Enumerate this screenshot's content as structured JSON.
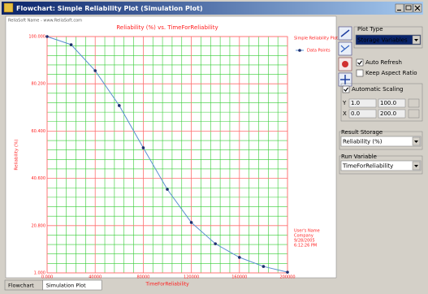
{
  "window": {
    "title": "Flowchart: Simple Reliability Plot (Simulation Plot)",
    "watermark": "ReliaSoft Name - www.ReliaSoft.com"
  },
  "chart_data": {
    "type": "line",
    "title": "Reliability (%) vs. TimeForReliability",
    "x_label": "TimeForReliability",
    "y_label": "Reliability (%)",
    "legend_title": "Simple Reliability Plot",
    "x": [
      0,
      20000,
      40000,
      60000,
      80000,
      100000,
      120000,
      140000,
      160000,
      180000,
      200000
    ],
    "series": [
      {
        "name": "Data Points",
        "color": "#5b8fd0",
        "marker_color": "#1f2f6f",
        "values": [
          100,
          96.6,
          85.7,
          71.1,
          53.4,
          36.0,
          22.1,
          13.2,
          7.5,
          3.7,
          1.3
        ]
      }
    ],
    "xlim": [
      0,
      200000
    ],
    "ylim": [
      1,
      100
    ],
    "xticks": [
      {
        "value": 0,
        "label": "0.000"
      },
      40000,
      80000,
      120000,
      160000,
      200000
    ],
    "yticks": [
      {
        "value": 1,
        "label": "1.000"
      },
      {
        "value": 20.8,
        "label": "20.800"
      },
      {
        "value": 40.6,
        "label": "40.600"
      },
      {
        "value": 60.4,
        "label": "60.400"
      },
      {
        "value": 80.2,
        "label": "80.200"
      },
      {
        "value": 100,
        "label": "100.000"
      }
    ],
    "grid": true,
    "grid_color": "#ff6f6f",
    "minor_grid_color": "#33cc33",
    "text_color": "#ff2020",
    "user_info": [
      "User's Name",
      "Company",
      "9/28/2005",
      "6:12:26 PM"
    ]
  },
  "panel": {
    "plot_type": {
      "label": "Plot Type",
      "value": "Storage Variables"
    },
    "auto_refresh": {
      "label": "Auto Refresh",
      "checked": true
    },
    "keep_aspect_ratio": {
      "label": "Keep Aspect Ratio",
      "checked": false
    },
    "automatic_scaling": {
      "label": "Automatic Scaling",
      "checked": true
    },
    "y_range": {
      "label": "Y",
      "min": "1.0",
      "max": "100.0"
    },
    "x_range": {
      "label": "X",
      "min": "0.0",
      "max": "200.0"
    },
    "result_storage": {
      "label": "Result Storage",
      "value": "Reliability (%)"
    },
    "run_variable": {
      "label": "Run Variable",
      "value": "TimeForReliability"
    }
  },
  "tabs": [
    {
      "label": "Flowchart",
      "selected": false
    },
    {
      "label": "Simulation Plot",
      "selected": true
    }
  ]
}
